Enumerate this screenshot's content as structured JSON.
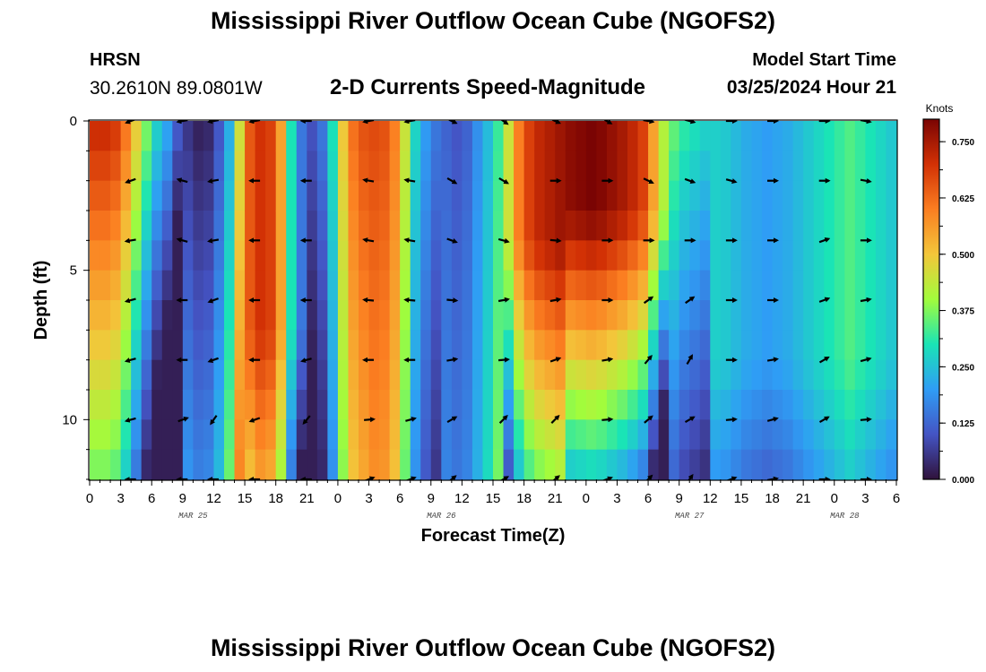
{
  "page": {
    "title": "Mississippi River Outflow Ocean Cube (NGOFS2)",
    "station_label": "HRSN",
    "coordinates": "30.2610N  89.0801W",
    "subtitle": "2-D Currents Speed-Magnitude",
    "model_start_label": "Model Start Time",
    "model_start_value": "03/25/2024 Hour 21"
  },
  "chart_data": {
    "type": "heatmap",
    "title": "2-D Currents Speed-Magnitude",
    "xlabel": "Forecast Time(Z)",
    "ylabel": "Depth (ft)",
    "colorbar_label": "Knots",
    "colorbar_ticks": [
      0.0,
      0.125,
      0.25,
      0.375,
      0.5,
      0.625,
      0.75
    ],
    "colorbar_tick_labels": [
      "0.000",
      "0.125",
      "0.250",
      "0.375",
      "0.500",
      "0.625",
      "0.750"
    ],
    "crange": [
      0,
      0.8
    ],
    "xlim": [
      0,
      78
    ],
    "ylim": [
      12,
      0
    ],
    "x_tick_hours": [
      0,
      3,
      6,
      9,
      12,
      15,
      18,
      21,
      24,
      27,
      30,
      33,
      36,
      39,
      42,
      45,
      48,
      51,
      54,
      57,
      60,
      63,
      66,
      69,
      72,
      75,
      78
    ],
    "x_tick_labels": [
      "0",
      "3",
      "6",
      "9",
      "12",
      "15",
      "18",
      "21",
      "0",
      "3",
      "6",
      "9",
      "12",
      "15",
      "18",
      "21",
      "0",
      "3",
      "6",
      "9",
      "12",
      "15",
      "18",
      "21",
      "0",
      "3",
      "6"
    ],
    "date_labels": [
      {
        "hour": 10,
        "label": "MAR 25"
      },
      {
        "hour": 34,
        "label": "MAR 26"
      },
      {
        "hour": 58,
        "label": "MAR 27"
      },
      {
        "hour": 73,
        "label": "MAR 28"
      }
    ],
    "y_ticks": [
      0,
      5,
      10
    ],
    "y_tick_labels": [
      "0",
      "5",
      "10"
    ],
    "speed_profile_top_knots": [
      0.72,
      0.72,
      0.7,
      0.62,
      0.5,
      0.38,
      0.28,
      0.22,
      0.12,
      0.05,
      0.02,
      0.03,
      0.1,
      0.22,
      0.45,
      0.65,
      0.7,
      0.68,
      0.55,
      0.3,
      0.15,
      0.1,
      0.15,
      0.3,
      0.5,
      0.62,
      0.66,
      0.67,
      0.66,
      0.6,
      0.45,
      0.28,
      0.2,
      0.15,
      0.12,
      0.1,
      0.12,
      0.18,
      0.24,
      0.32,
      0.45,
      0.6,
      0.68,
      0.72,
      0.74,
      0.76,
      0.78,
      0.79,
      0.8,
      0.79,
      0.77,
      0.75,
      0.72,
      0.68,
      0.55,
      0.42,
      0.36,
      0.32,
      0.3,
      0.28,
      0.27,
      0.26,
      0.24,
      0.22,
      0.21,
      0.2,
      0.21,
      0.22,
      0.24,
      0.26,
      0.28,
      0.3,
      0.32,
      0.34,
      0.32,
      0.3,
      0.28,
      0.26
    ],
    "arrow_times_hours": [
      4,
      9,
      12,
      16,
      21,
      27,
      31,
      35,
      40,
      45,
      50,
      54,
      58,
      62,
      66,
      71,
      75
    ],
    "arrow_depths_ft": [
      0,
      2,
      4,
      6,
      8,
      10,
      12
    ],
    "arrow_direction_rows_deg": [
      [
        200,
        190,
        190,
        190,
        180,
        190,
        190,
        335,
        325,
        335,
        330,
        350,
        345,
        0,
        0,
        0,
        350
      ],
      [
        200,
        165,
        190,
        180,
        180,
        170,
        170,
        330,
        330,
        0,
        0,
        335,
        340,
        345,
        0,
        0,
        350
      ],
      [
        190,
        165,
        190,
        180,
        180,
        170,
        170,
        340,
        345,
        355,
        0,
        0,
        0,
        0,
        0,
        20,
        0
      ],
      [
        195,
        180,
        200,
        180,
        180,
        175,
        175,
        355,
        10,
        10,
        0,
        35,
        35,
        0,
        0,
        20,
        10
      ],
      [
        195,
        180,
        200,
        180,
        195,
        180,
        180,
        10,
        5,
        20,
        10,
        50,
        60,
        0,
        10,
        30,
        15
      ],
      [
        195,
        20,
        235,
        200,
        230,
        5,
        15,
        30,
        45,
        45,
        5,
        40,
        30,
        5,
        15,
        30,
        5
      ],
      [
        180,
        180,
        180,
        180,
        180,
        20,
        20,
        40,
        30,
        40,
        20,
        45,
        55,
        20,
        10,
        0,
        0
      ]
    ]
  },
  "colors": {
    "background": "#ffffff",
    "text": "#000000",
    "colorscale": [
      "#30123b",
      "#4454c4",
      "#2f9df5",
      "#1ae4b6",
      "#a2fc3c",
      "#f3c63a",
      "#fb7e21",
      "#d23105",
      "#7a0403"
    ]
  }
}
